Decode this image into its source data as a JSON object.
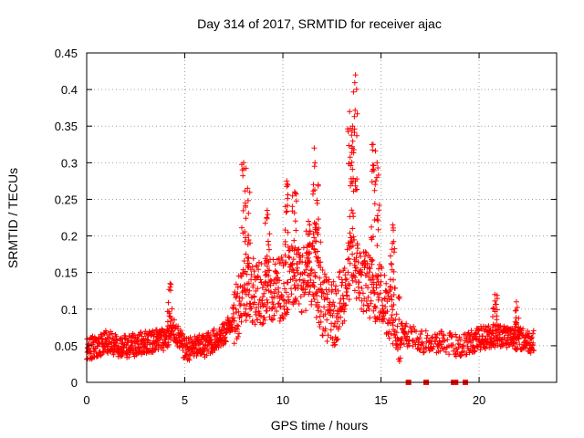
{
  "chart_data": {
    "type": "scatter",
    "title": "Day 314 of 2017, SRMTID for receiver ajac",
    "xlabel": "GPS time / hours",
    "ylabel": "SRMTID / TECUs",
    "xlim": [
      0,
      23.95
    ],
    "ylim": [
      0,
      0.45
    ],
    "x_ticks": [
      0,
      5,
      10,
      15,
      20
    ],
    "y_ticks": [
      0,
      0.05,
      0.1,
      0.15,
      0.2,
      0.25,
      0.3,
      0.35,
      0.4,
      0.45
    ],
    "grid": true,
    "marker": "+",
    "series_color": "#ff0000",
    "background_color": "#ffffff",
    "bottom_markers_x": [
      16.4,
      17.3,
      18.7,
      18.8,
      19.3
    ],
    "profile": [
      [
        0.0,
        0.045
      ],
      [
        1.0,
        0.055
      ],
      [
        2.0,
        0.048
      ],
      [
        3.0,
        0.055
      ],
      [
        4.0,
        0.06
      ],
      [
        4.5,
        0.07
      ],
      [
        5.0,
        0.045
      ],
      [
        6.0,
        0.05
      ],
      [
        7.0,
        0.065
      ],
      [
        7.5,
        0.09
      ],
      [
        8.0,
        0.13
      ],
      [
        9.0,
        0.12
      ],
      [
        10.0,
        0.13
      ],
      [
        10.5,
        0.15
      ],
      [
        11.0,
        0.14
      ],
      [
        11.5,
        0.15
      ],
      [
        12.0,
        0.11
      ],
      [
        12.5,
        0.09
      ],
      [
        13.0,
        0.11
      ],
      [
        13.5,
        0.17
      ],
      [
        14.0,
        0.14
      ],
      [
        14.5,
        0.13
      ],
      [
        15.0,
        0.12
      ],
      [
        15.5,
        0.1
      ],
      [
        16.0,
        0.07
      ],
      [
        17.0,
        0.055
      ],
      [
        18.0,
        0.055
      ],
      [
        19.0,
        0.05
      ],
      [
        20.0,
        0.06
      ],
      [
        21.0,
        0.065
      ],
      [
        22.0,
        0.06
      ],
      [
        22.8,
        0.055
      ]
    ],
    "peaks": [
      [
        4.25,
        0.135
      ],
      [
        8.0,
        0.3
      ],
      [
        8.2,
        0.265
      ],
      [
        9.2,
        0.235
      ],
      [
        10.2,
        0.275
      ],
      [
        10.6,
        0.26
      ],
      [
        11.3,
        0.22
      ],
      [
        11.6,
        0.32
      ],
      [
        11.8,
        0.27
      ],
      [
        13.4,
        0.37
      ],
      [
        13.7,
        0.42
      ],
      [
        13.55,
        0.35
      ],
      [
        14.6,
        0.325
      ],
      [
        14.8,
        0.3
      ],
      [
        15.6,
        0.215
      ],
      [
        20.8,
        0.12
      ],
      [
        21.9,
        0.11
      ]
    ]
  }
}
